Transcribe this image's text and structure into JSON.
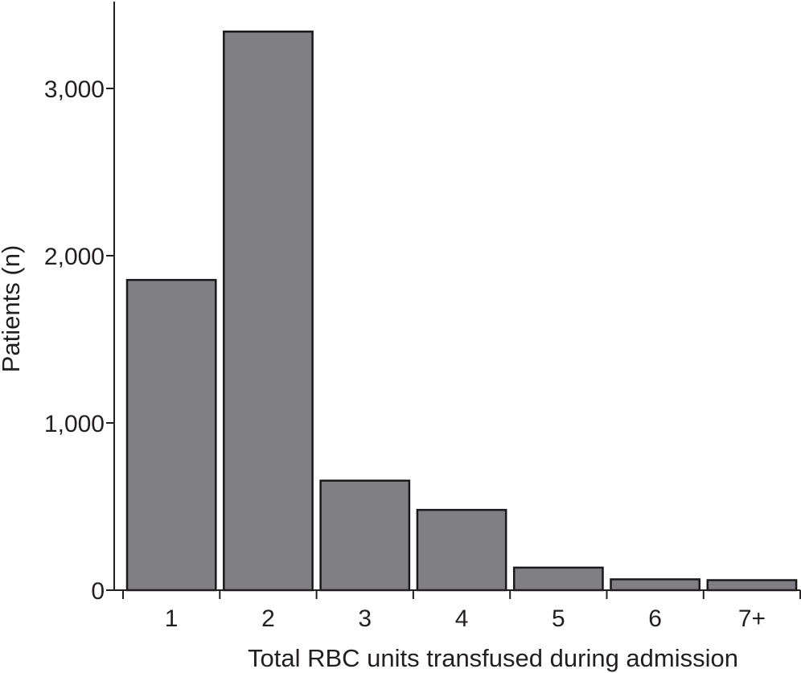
{
  "chart_data": {
    "type": "bar",
    "title": "",
    "xlabel": "Total RBC units transfused during admission",
    "ylabel": "Patients (n)",
    "categories": [
      "1",
      "2",
      "3",
      "4",
      "5",
      "6",
      "7+"
    ],
    "values": [
      1855,
      3340,
      655,
      480,
      135,
      65,
      60
    ],
    "ylim": [
      0,
      3500
    ],
    "yticks": [
      0,
      1000,
      2000,
      3000
    ],
    "ytick_labels": [
      "0",
      "1,000",
      "2,000",
      "3,000"
    ],
    "grid": false,
    "legend": "none",
    "colors": {
      "bar_fill": "#808084",
      "bar_stroke": "#1a1a1a",
      "axis": "#231f20",
      "text": "#231f20"
    }
  }
}
